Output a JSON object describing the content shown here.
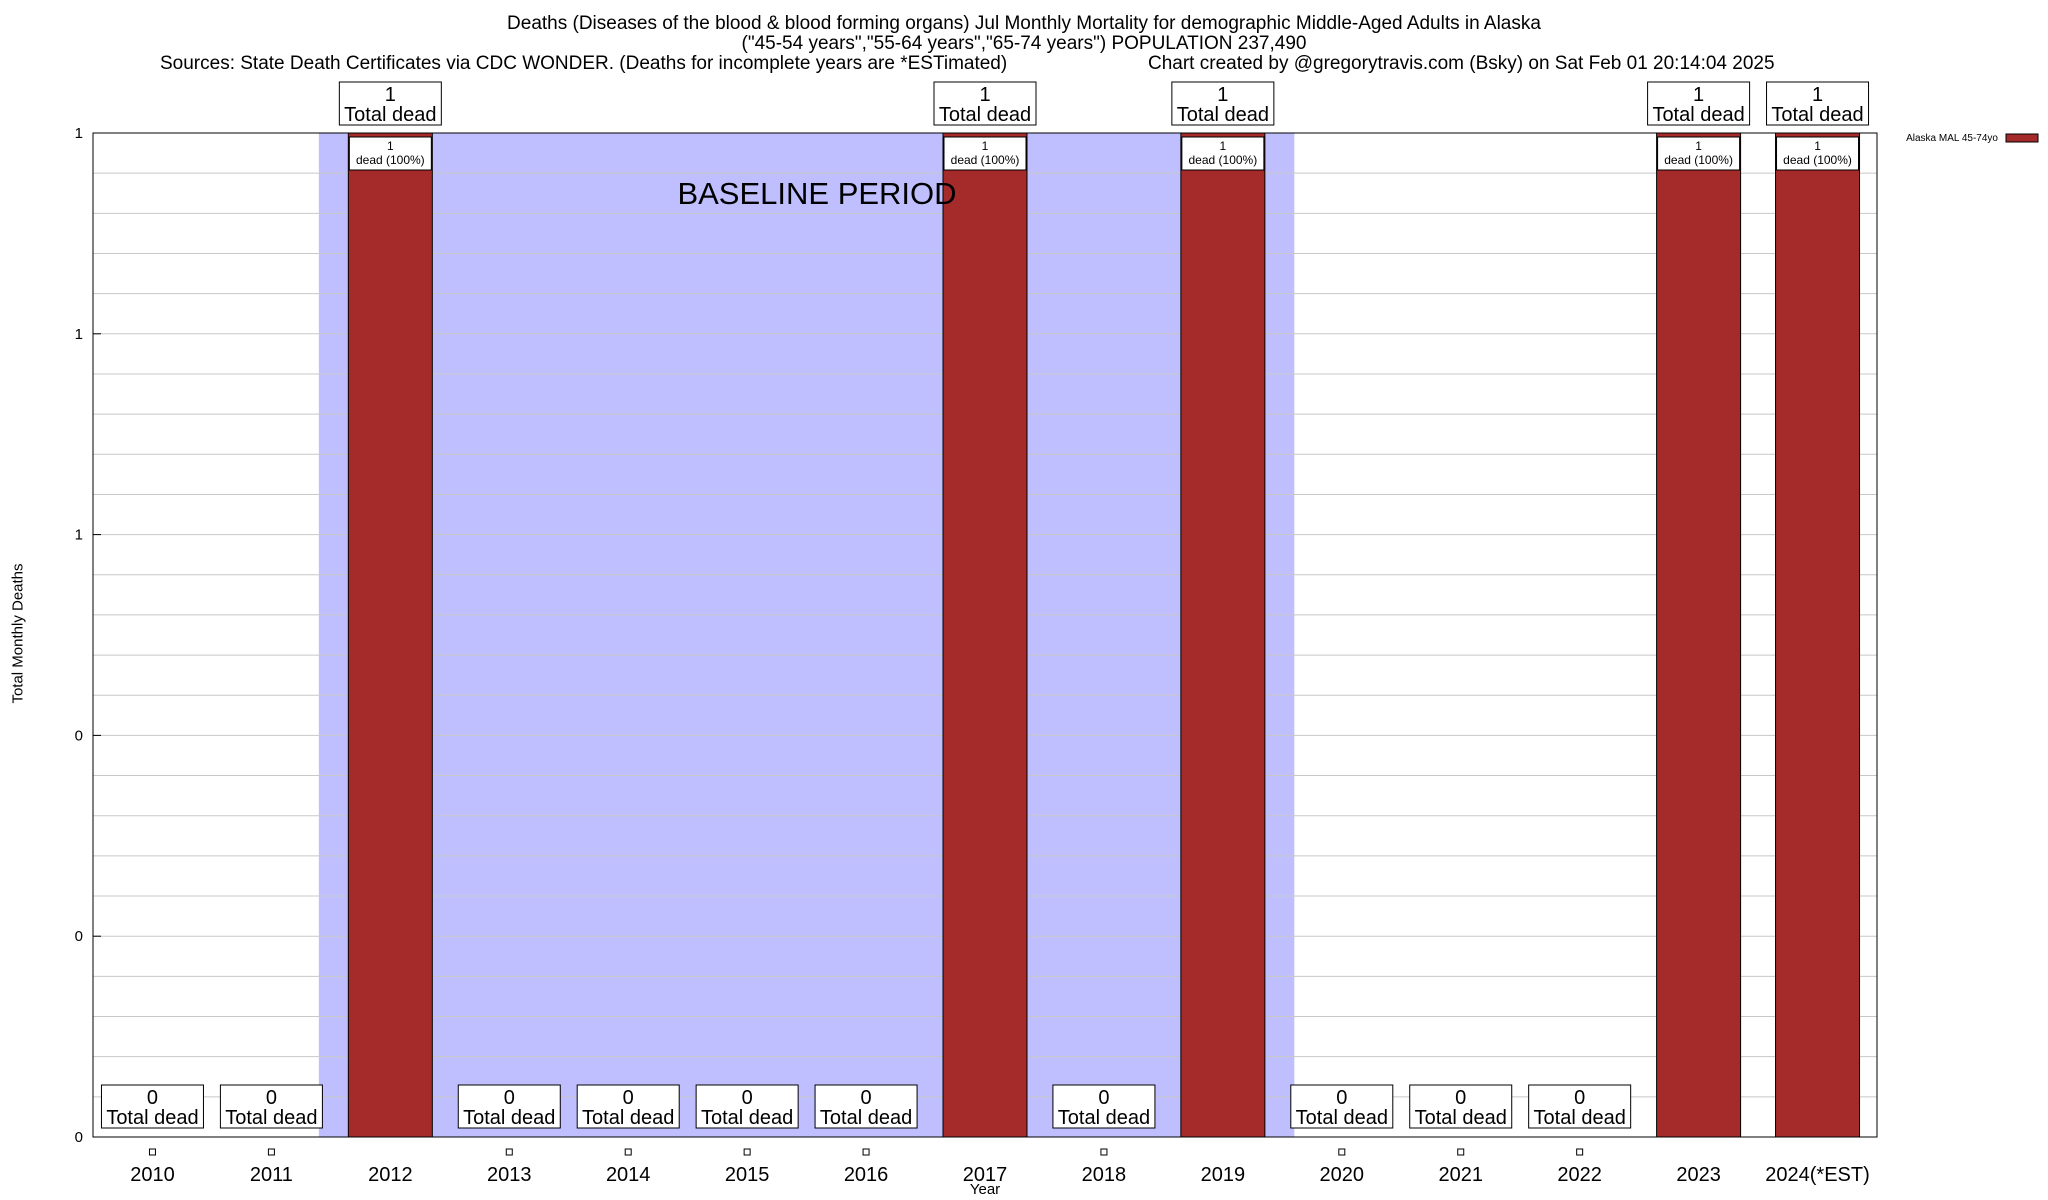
{
  "title": {
    "line1": "Deaths (Diseases of the blood & blood forming organs) Jul Monthly Mortality for demographic Middle-Aged Adults in Alaska",
    "line2": "(\"45-54 years\",\"55-64 years\",\"65-74 years\") POPULATION 237,490",
    "sources": "Sources: State Death Certificates via CDC WONDER. (Deaths for incomplete years are *ESTimated)",
    "credit": "Chart created by @gregorytravis.com (Bsky) on Sat Feb 01 20:14:04 2025"
  },
  "chart_data": {
    "type": "bar",
    "xlabel": "Year",
    "ylabel": "Total Monthly Deaths",
    "ylim": [
      0,
      1
    ],
    "ytick_labels": [
      "0",
      "0",
      "0",
      "1",
      "1",
      "1"
    ],
    "grid": true,
    "legend_placement": "top-right",
    "categories": [
      "2010",
      "2011",
      "2012",
      "2013",
      "2014",
      "2015",
      "2016",
      "2017",
      "2018",
      "2019",
      "2020",
      "2021",
      "2022",
      "2023",
      "2024(*EST)"
    ],
    "series": [
      {
        "name": "Alaska MAL 45-74yo",
        "color": "#a52a2a",
        "values": [
          0,
          0,
          1,
          0,
          0,
          0,
          0,
          1,
          0,
          1,
          0,
          0,
          0,
          1,
          1
        ]
      }
    ],
    "total_labels": [
      "0",
      "0",
      "1",
      "0",
      "0",
      "0",
      "0",
      "1",
      "0",
      "1",
      "0",
      "0",
      "0",
      "1",
      "1"
    ],
    "total_suffix": "Total dead",
    "pct_labels": {
      "2012": [
        "1",
        "dead (100%)"
      ],
      "2017": [
        "1",
        "dead (100%)"
      ],
      "2019": [
        "1",
        "dead (100%)"
      ],
      "2023": [
        "1",
        "dead (100%)"
      ],
      "2024(*EST)": [
        "1",
        "dead (100%)"
      ]
    },
    "baseline": {
      "label": "BASELINE PERIOD",
      "from": "2012",
      "to": "2019",
      "color": "#bfbfff"
    }
  }
}
